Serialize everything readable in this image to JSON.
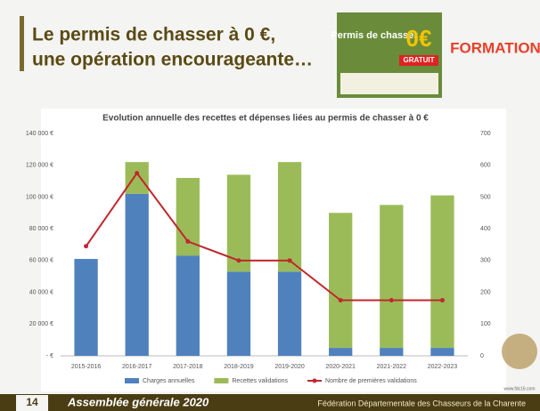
{
  "slide": {
    "title_line1": "Le permis de chasser à 0 €,",
    "title_line2": "une opération encourageante…",
    "poster_title": "Permis de chasser",
    "poster_price": "0€",
    "poster_badge": "GRATUIT",
    "logo": "FORMATION",
    "website": "www.fdc16.com",
    "page_number": "14",
    "footer_event": "Assemblée générale 2020",
    "footer_org": "Fédération Départementale des Chasseurs de la Charente"
  },
  "chart_data": {
    "type": "bar",
    "stacked": true,
    "title": "Evolution annuelle des recettes et dépenses liées au permis de chasser à 0 €",
    "categories": [
      "2015-2016",
      "2016-2017",
      "2017-2018",
      "2018-2019",
      "2019-2020",
      "2020-2021",
      "2021-2022",
      "2022-2023"
    ],
    "series": [
      {
        "name": "Charges annuelles",
        "color": "#4f81bd",
        "values": [
          61000,
          102000,
          63000,
          53000,
          53000,
          5000,
          5000,
          5000
        ]
      },
      {
        "name": "Recettes validations",
        "color": "#9bbb59",
        "values": [
          0,
          20000,
          49000,
          61000,
          69000,
          85000,
          90000,
          96000
        ]
      },
      {
        "name": "Nombre de premières validations",
        "color": "#c0282d",
        "type": "line",
        "axis": "y2",
        "values": [
          345,
          575,
          360,
          300,
          300,
          175,
          175,
          175
        ]
      }
    ],
    "ylim": [
      0,
      140000
    ],
    "yticks": [
      {
        "value": 0,
        "label": "- €"
      },
      {
        "value": 20000,
        "label": "20 000 €"
      },
      {
        "value": 40000,
        "label": "40 000 €"
      },
      {
        "value": 60000,
        "label": "60 000 €"
      },
      {
        "value": 80000,
        "label": "80 000 €"
      },
      {
        "value": 100000,
        "label": "100 000 €"
      },
      {
        "value": 120000,
        "label": "120 000 €"
      },
      {
        "value": 140000,
        "label": "140 000 €"
      }
    ],
    "y2lim": [
      0,
      700
    ],
    "y2ticks": [
      0,
      100,
      200,
      300,
      400,
      500,
      600,
      700
    ],
    "grid": false,
    "legend": "bottom"
  }
}
